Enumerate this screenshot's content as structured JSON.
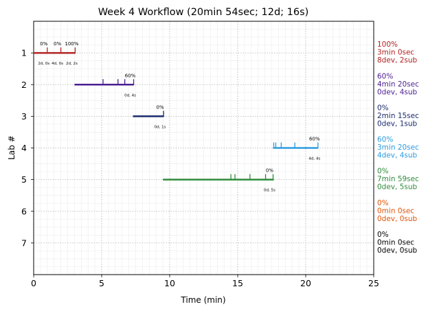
{
  "chart_data": {
    "type": "timeline",
    "title": "Week 4 Workflow (20min 54sec; 12d; 16s)",
    "xlabel": "Time (min)",
    "ylabel": "Lab #",
    "xlim": [
      0,
      25
    ],
    "xticks": [
      0,
      5,
      10,
      15,
      20,
      25
    ],
    "ylim": [
      8,
      0
    ],
    "yticks": [
      1,
      2,
      3,
      4,
      5,
      6,
      7
    ],
    "grid": true,
    "labs": [
      {
        "lab": 1,
        "color": "#b22222",
        "start": 0.0,
        "end": 3.05,
        "events": [
          {
            "x": 1.0,
            "pct": "0%",
            "counts": "2d, 0s"
          },
          {
            "x": 2.0,
            "pct": "0%",
            "counts": "4d, 0s"
          },
          {
            "x": 3.05,
            "pct": "100%",
            "counts": "2d, 2s"
          }
        ],
        "summary": [
          "100%",
          "3min 0sec",
          "8dev, 2sub"
        ]
      },
      {
        "lab": 2,
        "color": "#4b1d91",
        "start": 3.0,
        "end": 7.35,
        "events": [
          {
            "x": 5.1,
            "pct": "",
            "counts": ""
          },
          {
            "x": 6.2,
            "pct": "",
            "counts": ""
          },
          {
            "x": 6.7,
            "pct": "",
            "counts": ""
          },
          {
            "x": 7.35,
            "pct": "60%",
            "counts": "0d, 4s"
          }
        ],
        "summary": [
          "60%",
          "4min 20sec",
          "0dev, 4sub"
        ]
      },
      {
        "lab": 3,
        "color": "#1a2a6c",
        "start": 7.3,
        "end": 9.55,
        "events": [
          {
            "x": 9.55,
            "pct": "0%",
            "counts": "0d, 1s"
          }
        ],
        "summary": [
          "0%",
          "2min 15sec",
          "0dev, 1sub"
        ]
      },
      {
        "lab": 4,
        "color": "#2b9be0",
        "start": 17.6,
        "end": 20.9,
        "events": [
          {
            "x": 17.65,
            "pct": "",
            "counts": ""
          },
          {
            "x": 17.8,
            "pct": "",
            "counts": ""
          },
          {
            "x": 18.2,
            "pct": "",
            "counts": ""
          },
          {
            "x": 19.2,
            "pct": "",
            "counts": ""
          },
          {
            "x": 20.9,
            "pct": "60%",
            "counts": "4d, 4s"
          }
        ],
        "summary": [
          "60%",
          "3min 20sec",
          "4dev, 4sub"
        ]
      },
      {
        "lab": 5,
        "color": "#2e8b3a",
        "start": 9.5,
        "end": 17.65,
        "events": [
          {
            "x": 14.5,
            "pct": "",
            "counts": ""
          },
          {
            "x": 14.8,
            "pct": "",
            "counts": ""
          },
          {
            "x": 15.9,
            "pct": "",
            "counts": ""
          },
          {
            "x": 17.05,
            "pct": "",
            "counts": ""
          },
          {
            "x": 17.6,
            "pct": "0%",
            "counts": "0d, 5s"
          }
        ],
        "summary": [
          "0%",
          "7min 59sec",
          "0dev, 5sub"
        ]
      },
      {
        "lab": 6,
        "color": "#e0550b",
        "events": [],
        "summary": [
          "0%",
          "0min 0sec",
          "0dev, 0sub"
        ]
      },
      {
        "lab": 7,
        "color": "#000000",
        "events": [],
        "summary": [
          "0%",
          "0min 0sec",
          "0dev, 0sub"
        ]
      }
    ]
  }
}
